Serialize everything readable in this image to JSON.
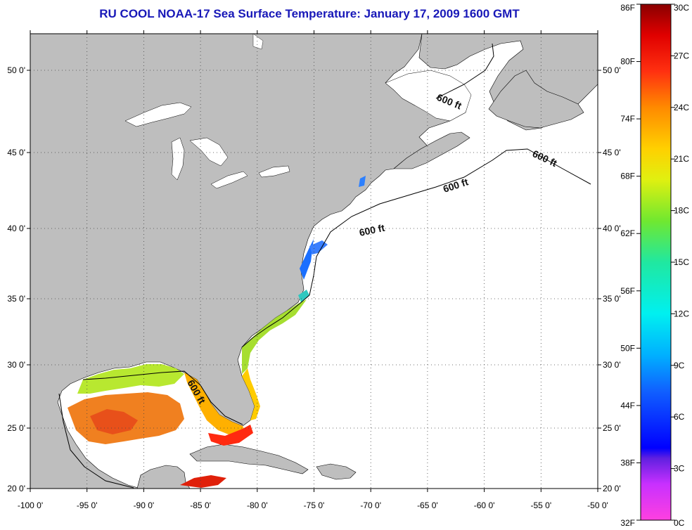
{
  "title": "RU COOL  NOAA-17  Sea Surface Temperature:  January 17, 2009 1600 GMT",
  "map": {
    "lon_ticks": [
      "-100 0'",
      "-95 0'",
      "-90 0'",
      "-85 0'",
      "-80 0'",
      "-75 0'",
      "-70 0'",
      "-65 0'",
      "-60 0'",
      "-55 0'",
      "-50 0'"
    ],
    "lat_ticks": [
      "50 0'",
      "45 0'",
      "40 0'",
      "35 0'",
      "30 0'",
      "25 0'",
      "20 0'"
    ],
    "isobath_labels": [
      "600 ft",
      "600 ft",
      "600 ft",
      "600 ft",
      "600 ft"
    ],
    "land_color": "#bebebe",
    "ocean_color": "#ffffff"
  },
  "colorbar": {
    "fahrenheit": [
      "86F",
      "80F",
      "74F",
      "68F",
      "62F",
      "56F",
      "50F",
      "44F",
      "38F",
      "32F"
    ],
    "celsius": [
      "30C",
      "27C",
      "24C",
      "21C",
      "18C",
      "15C",
      "12C",
      "9C",
      "6C",
      "3C",
      "0C"
    ]
  }
}
